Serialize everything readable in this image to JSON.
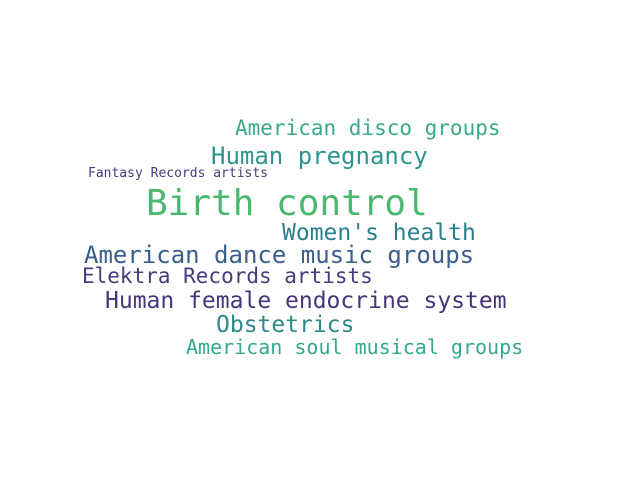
{
  "word_cloud": {
    "words": [
      {
        "text": "American disco groups",
        "color": "#3aa98a"
      },
      {
        "text": "Human pregnancy",
        "color": "#2e948d"
      },
      {
        "text": "Fantasy Records artists",
        "color": "#48397c"
      },
      {
        "text": "Birth control",
        "color": "#4bb870"
      },
      {
        "text": "Women's health",
        "color": "#2a7f8c"
      },
      {
        "text": "American dance music groups",
        "color": "#3a5f8c"
      },
      {
        "text": "Elektra Records artists",
        "color": "#433c7d"
      },
      {
        "text": "Human female endocrine system",
        "color": "#46357a"
      },
      {
        "text": "Obstetrics",
        "color": "#2d8a8b"
      },
      {
        "text": "American soul musical groups",
        "color": "#33a98e"
      }
    ]
  }
}
